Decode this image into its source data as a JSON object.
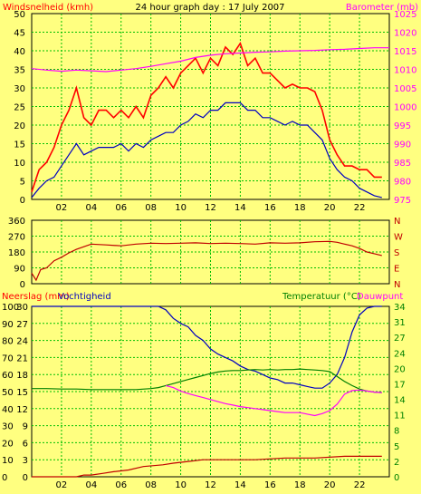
{
  "title": "24 hour graph day : 17 July 2007",
  "colors": {
    "background": "#ffff80",
    "plot_bg": "#ffff80",
    "grid": "#00c000",
    "frame": "#000000",
    "wind_gust": "#ff0000",
    "wind_avg": "#0000c0",
    "barometer": "#ff00ff",
    "direction": "#c00000",
    "rain": "#c00000",
    "humidity": "#0000c0",
    "temperature": "#008000",
    "dewpoint": "#ff00ff",
    "left_label": "#ff0000",
    "right_label": "#ff00ff",
    "humidity_label": "#0000c0",
    "temp_label": "#008000"
  },
  "x_ticks": [
    "02",
    "04",
    "06",
    "08",
    "10",
    "12",
    "14",
    "16",
    "18",
    "20",
    "22"
  ],
  "chart_data": [
    {
      "type": "line",
      "name": "wind-barometer",
      "xlabel": "",
      "left_axis": {
        "label": "Windsnelheid (kmh)",
        "ticks": [
          "0",
          "5",
          "10",
          "15",
          "20",
          "25",
          "30",
          "35",
          "40",
          "45",
          "50"
        ],
        "range": [
          0,
          50
        ]
      },
      "right_axis": {
        "label": "Barometer (mb)",
        "ticks": [
          "975",
          "980",
          "985",
          "990",
          "995",
          "1000",
          "1005",
          "1010",
          "1015",
          "1020",
          "1025"
        ],
        "range": [
          975,
          1025
        ]
      },
      "x_range": [
        0,
        24
      ],
      "grid": true,
      "series": [
        {
          "axis": "left",
          "color_key": "wind_gust",
          "x": [
            0,
            0.5,
            1,
            1.5,
            2,
            2.5,
            3,
            3.5,
            4,
            4.5,
            5,
            5.5,
            6,
            6.5,
            7,
            7.5,
            8,
            8.5,
            9,
            9.5,
            10,
            10.5,
            11,
            11.5,
            12,
            12.5,
            13,
            13.5,
            14,
            14.5,
            15,
            15.5,
            16,
            16.5,
            17,
            17.5,
            18,
            18.5,
            19,
            19.5,
            20,
            20.5,
            21,
            21.5,
            22,
            22.5,
            23,
            23.5
          ],
          "y": [
            2,
            8,
            10,
            14,
            20,
            24,
            30,
            22,
            20,
            24,
            24,
            22,
            24,
            22,
            25,
            22,
            28,
            30,
            33,
            30,
            34,
            36,
            38,
            34,
            38,
            36,
            41,
            39,
            42,
            36,
            38,
            34,
            34,
            32,
            30,
            31,
            30,
            30,
            29,
            24,
            16,
            12,
            9,
            9,
            8,
            8,
            6,
            6
          ]
        },
        {
          "axis": "left",
          "color_key": "wind_avg",
          "x": [
            0,
            0.5,
            1,
            1.5,
            2,
            2.5,
            3,
            3.5,
            4,
            4.5,
            5,
            5.5,
            6,
            6.5,
            7,
            7.5,
            8,
            8.5,
            9,
            9.5,
            10,
            10.5,
            11,
            11.5,
            12,
            12.5,
            13,
            13.5,
            14,
            14.5,
            15,
            15.5,
            16,
            16.5,
            17,
            17.5,
            18,
            18.5,
            19,
            19.5,
            20,
            20.5,
            21,
            21.5,
            22,
            22.5,
            23,
            23.5
          ],
          "y": [
            0.5,
            3,
            5,
            6,
            9,
            12,
            15,
            12,
            13,
            14,
            14,
            14,
            15,
            13,
            15,
            14,
            16,
            17,
            18,
            18,
            20,
            21,
            23,
            22,
            24,
            24,
            26,
            26,
            26,
            24,
            24,
            22,
            22,
            21,
            20,
            21,
            20,
            20,
            18,
            16,
            11,
            8,
            6,
            5,
            3,
            2,
            1,
            0.5
          ]
        },
        {
          "axis": "right",
          "color_key": "barometer",
          "x": [
            0,
            1,
            2,
            3,
            4,
            5,
            6,
            7,
            8,
            9,
            10,
            11,
            12,
            13,
            14,
            15,
            16,
            17,
            18,
            19,
            20,
            21,
            22,
            23,
            24
          ],
          "y": [
            1010.2,
            1009.8,
            1009.5,
            1009.8,
            1009.6,
            1009.4,
            1009.8,
            1010.2,
            1010.8,
            1011.5,
            1012.2,
            1013.2,
            1013.8,
            1014.2,
            1014.4,
            1014.6,
            1014.7,
            1014.9,
            1015.0,
            1015.1,
            1015.3,
            1015.4,
            1015.6,
            1015.8,
            1015.8
          ]
        }
      ]
    },
    {
      "type": "line",
      "name": "wind-direction",
      "left_axis": {
        "ticks": [
          "0",
          "90",
          "180",
          "270",
          "360"
        ],
        "range": [
          0,
          360
        ]
      },
      "right_axis": {
        "ticks": [
          "N",
          "E",
          "S",
          "W",
          "N"
        ],
        "range": [
          0,
          360
        ]
      },
      "x_range": [
        0,
        24
      ],
      "grid": true,
      "series": [
        {
          "axis": "left",
          "color_key": "direction",
          "x": [
            0,
            0.3,
            0.6,
            1,
            1.5,
            2,
            2.5,
            3,
            3.5,
            4,
            5,
            6,
            7,
            8,
            9,
            10,
            11,
            12,
            13,
            14,
            15,
            16,
            17,
            18,
            19,
            20,
            20.5,
            21,
            21.5,
            22,
            22.5,
            23,
            23.5
          ],
          "y": [
            60,
            20,
            80,
            90,
            130,
            150,
            175,
            195,
            210,
            225,
            220,
            215,
            225,
            230,
            228,
            230,
            232,
            228,
            230,
            228,
            225,
            232,
            230,
            232,
            238,
            240,
            235,
            225,
            215,
            200,
            180,
            170,
            160
          ]
        }
      ]
    },
    {
      "type": "line",
      "name": "rain-humidity-temperature",
      "left_axis": {
        "label": "Neerslag (mm)",
        "ticks": [
          "0",
          "3",
          "6",
          "9",
          "12",
          "15",
          "18",
          "21",
          "24",
          "27",
          "30"
        ],
        "range": [
          0,
          30
        ]
      },
      "left_axis2": {
        "label": "Vochtigheid",
        "ticks": [
          "0",
          "10",
          "20",
          "30",
          "40",
          "50",
          "60",
          "70",
          "80",
          "90",
          "100"
        ],
        "range": [
          0,
          100
        ]
      },
      "right_axis": {
        "label": "Temperatuur (°C)",
        "label2": "Dauwpunt",
        "ticks": [
          "0",
          "2",
          "5",
          "8",
          "11",
          "14",
          "17",
          "20",
          "24",
          "27",
          "31",
          "34"
        ],
        "range": [
          0,
          34
        ]
      },
      "x_range": [
        0,
        24
      ],
      "grid": true,
      "series": [
        {
          "axis": "left",
          "color_key": "rain",
          "x": [
            0,
            3,
            3.5,
            4,
            4.8,
            5.5,
            6.5,
            7.5,
            8.8,
            9.5,
            10.5,
            11.5,
            13,
            15,
            17,
            19,
            21,
            22,
            23.5
          ],
          "y": [
            0,
            0,
            0.3,
            0.3,
            0.6,
            0.9,
            1.2,
            1.8,
            2.1,
            2.4,
            2.7,
            3.0,
            3.0,
            3.0,
            3.3,
            3.3,
            3.6,
            3.6,
            3.6
          ]
        },
        {
          "axis": "left2",
          "color_key": "humidity",
          "x": [
            0,
            1,
            2,
            3,
            4,
            5,
            6,
            7,
            8,
            8.5,
            9,
            9.5,
            10,
            10.5,
            11,
            11.5,
            12,
            12.5,
            13,
            13.5,
            14,
            14.5,
            15,
            15.5,
            16,
            16.5,
            17,
            17.5,
            18,
            18.5,
            19,
            19.5,
            20,
            20.5,
            21,
            21.5,
            22,
            22.5,
            23,
            23.5
          ],
          "y": [
            100,
            100,
            100,
            100,
            100,
            100,
            100,
            100,
            100,
            100,
            98,
            93,
            90,
            88,
            83,
            80,
            75,
            72,
            70,
            68,
            65,
            63,
            62,
            60,
            58,
            57,
            55,
            55,
            54,
            53,
            52,
            52,
            55,
            60,
            70,
            85,
            95,
            99,
            100,
            100
          ]
        },
        {
          "axis": "right",
          "color_key": "temperature",
          "x": [
            0,
            1,
            2,
            3,
            4,
            5,
            6,
            7,
            8,
            8.5,
            9,
            9.5,
            10,
            10.5,
            11,
            11.5,
            12,
            12.5,
            13,
            13.5,
            14,
            14.5,
            15,
            15.5,
            16,
            16.5,
            17,
            17.5,
            18,
            18.5,
            19,
            19.5,
            20,
            20.5,
            21,
            21.5,
            22,
            22.5,
            23,
            23.5
          ],
          "y": [
            17.6,
            17.6,
            17.5,
            17.5,
            17.4,
            17.4,
            17.4,
            17.4,
            17.6,
            17.8,
            18.2,
            18.6,
            19.0,
            19.4,
            19.8,
            20.2,
            20.6,
            20.9,
            21.1,
            21.2,
            21.2,
            21.3,
            21.4,
            21.3,
            21.4,
            21.3,
            21.4,
            21.4,
            21.5,
            21.4,
            21.3,
            21.2,
            21.0,
            20.0,
            19.0,
            18.2,
            17.5,
            17.1,
            16.9,
            16.8
          ]
        },
        {
          "axis": "right",
          "color_key": "dewpoint",
          "x": [
            9,
            9.5,
            10,
            10.5,
            11,
            11.5,
            12,
            12.5,
            13,
            13.5,
            14,
            14.5,
            15,
            15.5,
            16,
            16.5,
            17,
            17.5,
            18,
            18.5,
            19,
            19.5,
            20,
            20.5,
            21,
            21.5,
            22,
            22.5,
            23,
            23.5
          ],
          "y": [
            18.2,
            17.8,
            17.1,
            16.6,
            16.2,
            15.8,
            15.4,
            15.0,
            14.6,
            14.3,
            14.0,
            13.8,
            13.6,
            13.4,
            13.2,
            13.0,
            12.8,
            12.8,
            12.8,
            12.5,
            12.2,
            12.6,
            13.2,
            14.5,
            16.5,
            17.2,
            17.3,
            17.1,
            16.9,
            16.8
          ]
        }
      ]
    }
  ]
}
